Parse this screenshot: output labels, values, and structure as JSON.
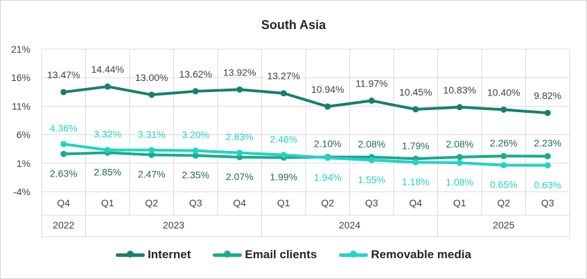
{
  "chart_data": {
    "type": "line",
    "title": "South Asia",
    "yticks": [
      "21%",
      "16%",
      "11%",
      "6%",
      "1%",
      "-4%"
    ],
    "ylim": [
      -4,
      21
    ],
    "categories": [
      "Q4",
      "Q1",
      "Q2",
      "Q3",
      "Q4",
      "Q1",
      "Q2",
      "Q3",
      "Q4",
      "Q1",
      "Q2",
      "Q3"
    ],
    "year_groups": [
      {
        "label": "2022",
        "span": 1
      },
      {
        "label": "2023",
        "span": 4
      },
      {
        "label": "2024",
        "span": 4
      },
      {
        "label": "2025",
        "span": 3
      }
    ],
    "series": [
      {
        "name": "Internet",
        "color": "#17806d",
        "values": [
          13.47,
          14.44,
          13.0,
          13.62,
          13.92,
          13.27,
          10.94,
          11.97,
          10.45,
          10.83,
          10.4,
          9.82
        ],
        "labels": [
          "13.47%",
          "14.44%",
          "13.00%",
          "13.62%",
          "13.92%",
          "13.27%",
          "10.94%",
          "11.97%",
          "10.45%",
          "10.83%",
          "10.40%",
          "9.82%"
        ]
      },
      {
        "name": "Email clients",
        "color": "#1aab8b",
        "values": [
          2.63,
          2.85,
          2.47,
          2.35,
          2.07,
          1.99,
          2.1,
          2.08,
          1.79,
          2.08,
          2.26,
          2.23
        ],
        "labels": [
          "2.63%",
          "2.85%",
          "2.47%",
          "2.35%",
          "2.07%",
          "1.99%",
          "2.10%",
          "2.08%",
          "1.79%",
          "2.08%",
          "2.26%",
          "2.23%"
        ]
      },
      {
        "name": "Removable media",
        "color": "#22d3c5",
        "values": [
          4.36,
          3.32,
          3.31,
          3.2,
          2.83,
          2.46,
          1.94,
          1.55,
          1.18,
          1.08,
          0.65,
          0.63
        ],
        "labels": [
          "4.36%",
          "3.32%",
          "3.31%",
          "3.20%",
          "2.83%",
          "2.46%",
          "1.94%",
          "1.55%",
          "1.18%",
          "1.08%",
          "0.65%",
          "0.63%"
        ]
      }
    ],
    "grid": true,
    "legend_position": "bottom"
  }
}
